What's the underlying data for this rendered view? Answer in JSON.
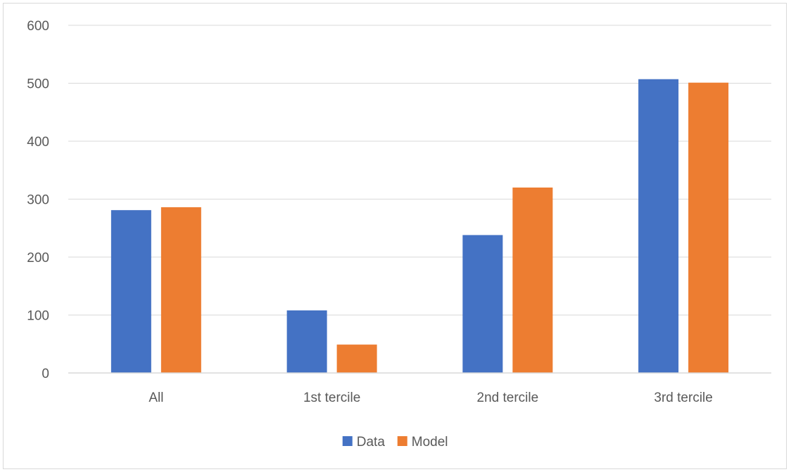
{
  "chart_data": {
    "type": "bar",
    "title": "",
    "xlabel": "",
    "ylabel": "",
    "categories": [
      "All",
      "1st tercile",
      "2nd tercile",
      "3rd tercile"
    ],
    "series": [
      {
        "name": "Data",
        "color": "#4472c4",
        "values": [
          281,
          108,
          238,
          507
        ]
      },
      {
        "name": "Model",
        "color": "#ed7d31",
        "values": [
          286,
          49,
          320,
          501
        ]
      }
    ],
    "ylim": [
      0,
      600
    ],
    "yticks": [
      0,
      100,
      200,
      300,
      400,
      500,
      600
    ],
    "grid": true,
    "legend_position": "bottom"
  }
}
